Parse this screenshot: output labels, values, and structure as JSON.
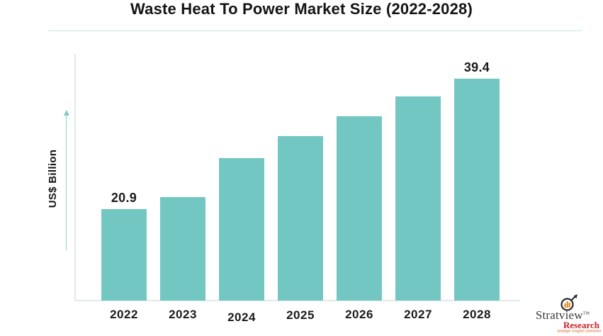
{
  "header": {
    "title": "Waste Heat To Power Market Size (2022-2028)"
  },
  "chart_data": {
    "type": "bar",
    "title": "Waste Heat To Power Market Size (2022-2028)",
    "categories": [
      "2022",
      "2023",
      "2024",
      "2025",
      "2026",
      "2027",
      "2028"
    ],
    "values": [
      20.9,
      22.6,
      28.2,
      31.3,
      34.1,
      36.9,
      39.4
    ],
    "bar_labels": [
      "20.9",
      "",
      "",
      "",
      "",
      "",
      "39.4"
    ],
    "xlabel": "",
    "ylabel": "US$ Billion",
    "unit": "US$ Billion",
    "ylim": [
      8,
      42.8
    ],
    "grid": false,
    "legend": false,
    "bar_color": "#73c7c2",
    "axis_color": "#e0ebea",
    "arrow_color": "#7fcbc6",
    "label_color": "#1a1a1a"
  },
  "branding": {
    "name": "Stratview",
    "tm": "TM",
    "sub": "Research",
    "tagline": "Strategic Insights Delivered"
  }
}
